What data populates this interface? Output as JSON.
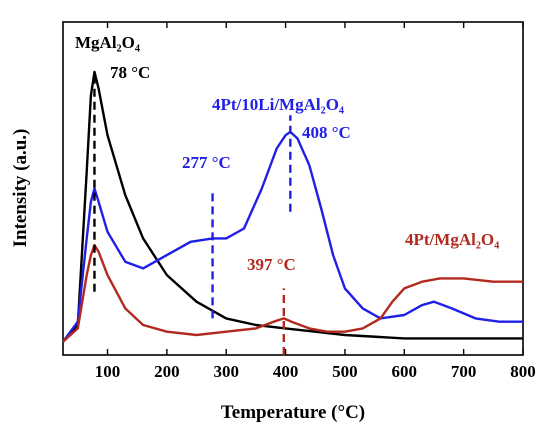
{
  "chart_data": {
    "type": "line",
    "xlabel": "Temperature (°C)",
    "ylabel": "Intensity (a.u.)",
    "xlim": [
      25,
      800
    ],
    "ylim": [
      0,
      100
    ],
    "x_ticks": [
      100,
      200,
      300,
      400,
      500,
      600,
      700,
      800
    ],
    "y_ticks": "none",
    "grid": false,
    "series": [
      {
        "name": "MgAl₂O₄",
        "color": "#000000",
        "points": [
          [
            25,
            4
          ],
          [
            50,
            9
          ],
          [
            65,
            55
          ],
          [
            72,
            78
          ],
          [
            78,
            85
          ],
          [
            85,
            80
          ],
          [
            100,
            66
          ],
          [
            130,
            48
          ],
          [
            160,
            35
          ],
          [
            200,
            24
          ],
          [
            250,
            16
          ],
          [
            300,
            11
          ],
          [
            350,
            9
          ],
          [
            400,
            8
          ],
          [
            450,
            7
          ],
          [
            500,
            6
          ],
          [
            600,
            5
          ],
          [
            700,
            5
          ],
          [
            800,
            5
          ]
        ]
      },
      {
        "name": "4Pt/10Li/MgAl₂O₄",
        "color": "#1f1fe6",
        "points": [
          [
            25,
            4
          ],
          [
            50,
            10
          ],
          [
            65,
            35
          ],
          [
            72,
            46
          ],
          [
            78,
            50
          ],
          [
            85,
            46
          ],
          [
            100,
            37
          ],
          [
            130,
            28
          ],
          [
            160,
            26
          ],
          [
            200,
            30
          ],
          [
            240,
            34
          ],
          [
            277,
            35
          ],
          [
            300,
            35
          ],
          [
            330,
            38
          ],
          [
            360,
            50
          ],
          [
            385,
            62
          ],
          [
            400,
            66
          ],
          [
            408,
            67
          ],
          [
            420,
            65
          ],
          [
            440,
            57
          ],
          [
            460,
            44
          ],
          [
            480,
            30
          ],
          [
            500,
            20
          ],
          [
            530,
            14
          ],
          [
            560,
            11
          ],
          [
            600,
            12
          ],
          [
            630,
            15
          ],
          [
            650,
            16
          ],
          [
            680,
            14
          ],
          [
            720,
            11
          ],
          [
            760,
            10
          ],
          [
            800,
            10
          ]
        ]
      },
      {
        "name": "4Pt/MgAl₂O₄",
        "color": "#b22a1f",
        "points": [
          [
            25,
            4
          ],
          [
            50,
            8
          ],
          [
            65,
            24
          ],
          [
            72,
            30
          ],
          [
            78,
            33
          ],
          [
            85,
            31
          ],
          [
            100,
            24
          ],
          [
            130,
            14
          ],
          [
            160,
            9
          ],
          [
            200,
            7
          ],
          [
            250,
            6
          ],
          [
            300,
            7
          ],
          [
            350,
            8
          ],
          [
            380,
            10
          ],
          [
            397,
            11
          ],
          [
            410,
            10
          ],
          [
            440,
            8
          ],
          [
            470,
            7
          ],
          [
            500,
            7
          ],
          [
            530,
            8
          ],
          [
            560,
            11
          ],
          [
            580,
            16
          ],
          [
            600,
            20
          ],
          [
            630,
            22
          ],
          [
            660,
            23
          ],
          [
            700,
            23
          ],
          [
            750,
            22
          ],
          [
            800,
            22
          ]
        ]
      }
    ],
    "peak_lines": [
      {
        "x": 78,
        "y_from": 19,
        "y_to": 84,
        "color": "#000000"
      },
      {
        "x": 277,
        "y_from": 11,
        "y_to": 49,
        "color": "#1f1fe6"
      },
      {
        "x": 408,
        "y_from": 43,
        "y_to": 72,
        "color": "#1f1fe6"
      },
      {
        "x": 397,
        "y_from": 0,
        "y_to": 20,
        "color": "#b22a1f"
      }
    ],
    "annotations": [
      {
        "id": "label-mgal2o4",
        "text": "MgAl₂O₄",
        "color": "#000000"
      },
      {
        "id": "temp-78",
        "text": "78 °C",
        "color": "#000000"
      },
      {
        "id": "label-4pt10li",
        "text": "4Pt/10Li/MgAl₂O₄",
        "color": "#1f1fe6"
      },
      {
        "id": "temp-408",
        "text": "408 °C",
        "color": "#1f1fe6"
      },
      {
        "id": "temp-277",
        "text": "277 °C",
        "color": "#1f1fe6"
      },
      {
        "id": "temp-397",
        "text": "397 °C",
        "color": "#b22a1f"
      },
      {
        "id": "label-4pt",
        "text": "4Pt/MgAl₂O₄",
        "color": "#b22a1f"
      }
    ]
  }
}
